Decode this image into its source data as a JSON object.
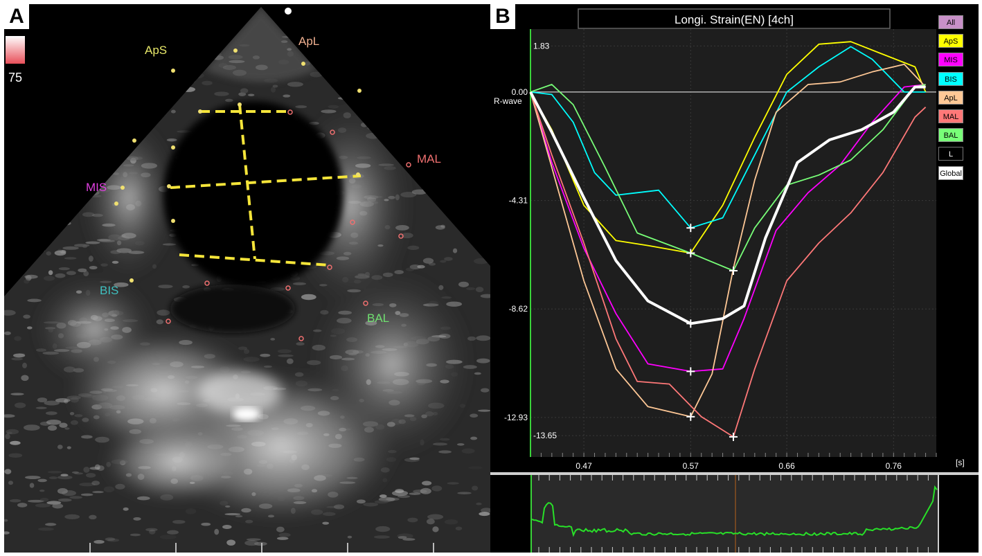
{
  "panel_a": {
    "letter": "A",
    "scale_value": "75",
    "segment_labels": [
      {
        "name": "ApS",
        "color": "#e8e86a"
      },
      {
        "name": "ApL",
        "color": "#f0b090"
      },
      {
        "name": "MAL",
        "color": "#f07070"
      },
      {
        "name": "MIS",
        "color": "#e040e0"
      },
      {
        "name": "BIS",
        "color": "#40c0c0"
      },
      {
        "name": "BAL",
        "color": "#70e070"
      }
    ]
  },
  "panel_b": {
    "letter": "B",
    "title": "Longi. Strain(EN) [4ch]",
    "legend": [
      {
        "label": "All",
        "color": "#c890c8"
      },
      {
        "label": "ApS",
        "color": "#ffff00"
      },
      {
        "label": "MIS",
        "color": "#ff00ff"
      },
      {
        "label": "BIS",
        "color": "#00ffff"
      },
      {
        "label": "ApL",
        "color": "#ffc896"
      },
      {
        "label": "MAL",
        "color": "#ff7878"
      },
      {
        "label": "BAL",
        "color": "#78ff78"
      },
      {
        "label": "L",
        "color": "#000000"
      },
      {
        "label": "Global",
        "color": "#ffffff"
      }
    ]
  },
  "chart_data": {
    "type": "line",
    "title": "Longi. Strain(EN) [4ch]",
    "xlabel": "[s]",
    "ylabel": "",
    "x_unit": "[s]",
    "r_wave_label": "R-wave",
    "xlim": [
      0.42,
      0.8
    ],
    "ylim": [
      -14.5,
      2.5
    ],
    "x_ticks": [
      "0.47",
      "0.57",
      "0.66",
      "0.76"
    ],
    "x_tick_values": [
      0.47,
      0.57,
      0.66,
      0.76
    ],
    "y_ticks": [
      "1.83",
      "0.00",
      "-4.31",
      "-8.62",
      "-12.93",
      "-13.65"
    ],
    "y_tick_values": [
      1.83,
      0.0,
      -4.31,
      -8.62,
      -12.93,
      -13.65
    ],
    "grid": true,
    "legend": "right",
    "series": [
      {
        "name": "ApS",
        "color": "#ffff00",
        "x": [
          0.42,
          0.44,
          0.47,
          0.5,
          0.53,
          0.57,
          0.6,
          0.63,
          0.66,
          0.69,
          0.72,
          0.75,
          0.78,
          0.79
        ],
        "y": [
          0.0,
          -1.5,
          -4.5,
          -5.9,
          -6.1,
          -6.4,
          -4.5,
          -1.8,
          0.7,
          1.9,
          2.0,
          1.5,
          1.0,
          0.0
        ]
      },
      {
        "name": "MIS",
        "color": "#ff00ff",
        "x": [
          0.42,
          0.44,
          0.47,
          0.5,
          0.53,
          0.57,
          0.6,
          0.62,
          0.65,
          0.68,
          0.71,
          0.74,
          0.77,
          0.79
        ],
        "y": [
          0.0,
          -2.8,
          -6.2,
          -8.8,
          -10.8,
          -11.1,
          -11.0,
          -9.0,
          -5.5,
          -4.0,
          -2.9,
          -1.2,
          0.2,
          0.3
        ]
      },
      {
        "name": "BIS",
        "color": "#00ffff",
        "x": [
          0.42,
          0.44,
          0.46,
          0.48,
          0.5,
          0.52,
          0.54,
          0.57,
          0.6,
          0.63,
          0.66,
          0.69,
          0.72,
          0.74,
          0.77,
          0.79
        ],
        "y": [
          0.0,
          -0.1,
          -1.2,
          -3.2,
          -4.1,
          -4.0,
          -3.9,
          -5.4,
          -5.0,
          -2.5,
          0.0,
          1.0,
          1.8,
          1.3,
          0.0,
          0.0
        ]
      },
      {
        "name": "ApL",
        "color": "#ffc896",
        "x": [
          0.42,
          0.44,
          0.47,
          0.5,
          0.53,
          0.57,
          0.59,
          0.61,
          0.63,
          0.65,
          0.68,
          0.71,
          0.74,
          0.77,
          0.79
        ],
        "y": [
          0.0,
          -3.0,
          -7.5,
          -11.0,
          -12.5,
          -12.9,
          -11.2,
          -7.0,
          -3.5,
          -0.8,
          0.3,
          0.4,
          0.8,
          1.1,
          0.2
        ]
      },
      {
        "name": "MAL",
        "color": "#ff7878",
        "x": [
          0.42,
          0.44,
          0.47,
          0.5,
          0.52,
          0.55,
          0.58,
          0.61,
          0.63,
          0.66,
          0.69,
          0.72,
          0.75,
          0.78,
          0.79
        ],
        "y": [
          0.0,
          -2.5,
          -6.0,
          -9.8,
          -11.5,
          -11.6,
          -12.9,
          -13.7,
          -11.0,
          -7.5,
          -6.0,
          -4.8,
          -3.2,
          -1.0,
          -0.6
        ]
      },
      {
        "name": "BAL",
        "color": "#78ff78",
        "x": [
          0.42,
          0.44,
          0.46,
          0.49,
          0.52,
          0.57,
          0.61,
          0.63,
          0.66,
          0.69,
          0.72,
          0.75,
          0.78,
          0.79
        ],
        "y": [
          0.0,
          0.3,
          -0.5,
          -3.0,
          -5.6,
          -6.4,
          -7.1,
          -5.4,
          -3.7,
          -3.3,
          -2.7,
          -1.5,
          0.2,
          0.3
        ]
      },
      {
        "name": "Global",
        "color": "#ffffff",
        "x": [
          0.42,
          0.44,
          0.47,
          0.5,
          0.53,
          0.57,
          0.6,
          0.62,
          0.64,
          0.67,
          0.7,
          0.73,
          0.76,
          0.78,
          0.79
        ],
        "y": [
          0.0,
          -1.6,
          -4.2,
          -6.7,
          -8.3,
          -9.2,
          -9.0,
          -8.5,
          -5.8,
          -2.8,
          -1.9,
          -1.5,
          -0.8,
          0.2,
          0.2
        ]
      }
    ],
    "peak_markers": [
      {
        "x": 0.57,
        "y": -5.4
      },
      {
        "x": 0.57,
        "y": -6.4
      },
      {
        "x": 0.61,
        "y": -7.1
      },
      {
        "x": 0.57,
        "y": -9.2
      },
      {
        "x": 0.57,
        "y": -11.1
      },
      {
        "x": 0.57,
        "y": -12.9
      },
      {
        "x": 0.61,
        "y": -13.7
      }
    ]
  }
}
